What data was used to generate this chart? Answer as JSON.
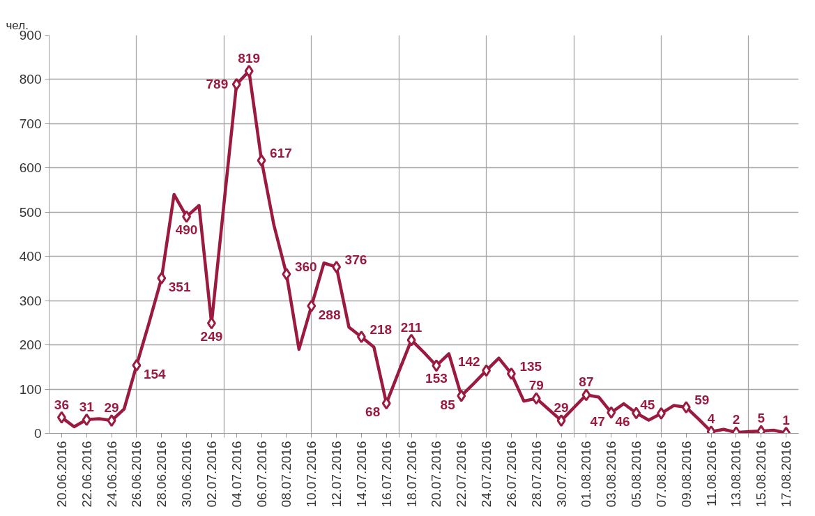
{
  "chart_data": {
    "type": "line",
    "ylabel": "чел.",
    "x": [
      "2016-06-20",
      "2016-06-21",
      "2016-06-22",
      "2016-06-23",
      "2016-06-24",
      "2016-06-25",
      "2016-06-26",
      "2016-06-27",
      "2016-06-28",
      "2016-06-29",
      "2016-06-30",
      "2016-07-01",
      "2016-07-02",
      "2016-07-03",
      "2016-07-04",
      "2016-07-05",
      "2016-07-06",
      "2016-07-07",
      "2016-07-08",
      "2016-07-09",
      "2016-07-10",
      "2016-07-11",
      "2016-07-12",
      "2016-07-13",
      "2016-07-14",
      "2016-07-15",
      "2016-07-16",
      "2016-07-17",
      "2016-07-18",
      "2016-07-19",
      "2016-07-20",
      "2016-07-21",
      "2016-07-22",
      "2016-07-23",
      "2016-07-24",
      "2016-07-25",
      "2016-07-26",
      "2016-07-27",
      "2016-07-28",
      "2016-07-29",
      "2016-07-30",
      "2016-07-31",
      "2016-08-01",
      "2016-08-02",
      "2016-08-03",
      "2016-08-04",
      "2016-08-05",
      "2016-08-06",
      "2016-08-07",
      "2016-08-08",
      "2016-08-09",
      "2016-08-10",
      "2016-08-11",
      "2016-08-12",
      "2016-08-13",
      "2016-08-14",
      "2016-08-15",
      "2016-08-16",
      "2016-08-17"
    ],
    "series": [
      {
        "color": "#9b1b40",
        "values": [
          36,
          15,
          31,
          33,
          29,
          55,
          154,
          250,
          351,
          540,
          490,
          515,
          249,
          520,
          789,
          819,
          617,
          470,
          360,
          190,
          288,
          385,
          376,
          240,
          218,
          195,
          68,
          140,
          211,
          183,
          153,
          180,
          85,
          113,
          142,
          170,
          135,
          73,
          79,
          54,
          29,
          58,
          87,
          82,
          47,
          67,
          46,
          30,
          45,
          63,
          59,
          32,
          4,
          9,
          2,
          4,
          5,
          7,
          1
        ],
        "value_labels": [
          "36",
          null,
          "31",
          null,
          "29",
          null,
          "154",
          null,
          "351",
          null,
          "490",
          null,
          "249",
          null,
          "789",
          "819",
          "617",
          null,
          "360",
          null,
          "288",
          null,
          "376",
          null,
          "218",
          null,
          "68",
          null,
          "211",
          null,
          "153",
          null,
          "85",
          null,
          "142",
          null,
          "135",
          null,
          "79",
          null,
          "29",
          null,
          "87",
          null,
          "47",
          null,
          "46",
          null,
          "45",
          null,
          "59",
          null,
          "4",
          null,
          "2",
          null,
          "5",
          null,
          "1"
        ]
      }
    ],
    "xlim": [
      "2016-06-19",
      "2016-08-18"
    ],
    "xticks": [
      {
        "value": "2016-06-26",
        "label": null
      },
      {
        "value": "2016-07-03",
        "label": null
      },
      {
        "value": "2016-07-10",
        "label": null
      },
      {
        "value": "2016-07-17",
        "label": null
      },
      {
        "value": "2016-07-24",
        "label": null
      },
      {
        "value": "2016-07-31",
        "label": null
      },
      {
        "value": "2016-08-07",
        "label": null
      },
      {
        "value": "2016-08-14",
        "label": null
      },
      {
        "value": "2016-06-20",
        "label": "20.06.2016"
      },
      {
        "value": "2016-06-22",
        "label": "22.06.2016"
      },
      {
        "value": "2016-06-24",
        "label": "24.06.2016"
      },
      {
        "value": "2016-06-26",
        "label": "26.06.2016"
      },
      {
        "value": "2016-06-28",
        "label": "28.06.2016"
      },
      {
        "value": "2016-06-30",
        "label": "30.06.2016"
      },
      {
        "value": "2016-07-02",
        "label": "02.07.2016"
      },
      {
        "value": "2016-07-04",
        "label": "04.07.2016"
      },
      {
        "value": "2016-07-06",
        "label": "06.07.2016"
      },
      {
        "value": "2016-07-08",
        "label": "08.07.2016"
      },
      {
        "value": "2016-07-10",
        "label": "10.07.2016"
      },
      {
        "value": "2016-07-12",
        "label": "12.07.2016"
      },
      {
        "value": "2016-07-14",
        "label": "14.07.2016"
      },
      {
        "value": "2016-07-16",
        "label": "16.07.2016"
      },
      {
        "value": "2016-07-18",
        "label": "18.07.2016"
      },
      {
        "value": "2016-07-20",
        "label": "20.07.2016"
      },
      {
        "value": "2016-07-22",
        "label": "22.07.2016"
      },
      {
        "value": "2016-07-24",
        "label": "24.07.2016"
      },
      {
        "value": "2016-07-26",
        "label": "26.07.2016"
      },
      {
        "value": "2016-07-28",
        "label": "28.07.2016"
      },
      {
        "value": "2016-07-30",
        "label": "30.07.2016"
      },
      {
        "value": "2016-08-01",
        "label": "01.08.2016"
      },
      {
        "value": "2016-08-03",
        "label": "03.08.2016"
      },
      {
        "value": "2016-08-05",
        "label": "05.08.2016"
      },
      {
        "value": "2016-08-07",
        "label": "07.08.2016"
      },
      {
        "value": "2016-08-09",
        "label": "09.08.2016"
      },
      {
        "value": "2016-08-11",
        "label": "11.08.2016"
      },
      {
        "value": "2016-08-13",
        "label": "13.08.2016"
      },
      {
        "value": "2016-08-15",
        "label": "15.08.2016"
      },
      {
        "value": "2016-08-17",
        "label": "17.08.2016"
      }
    ],
    "ylim": [
      0,
      900
    ],
    "yticks": [
      0,
      100,
      200,
      300,
      400,
      500,
      600,
      700,
      800,
      900
    ],
    "grid": true,
    "marker": "diamond",
    "line_style": "solid"
  }
}
